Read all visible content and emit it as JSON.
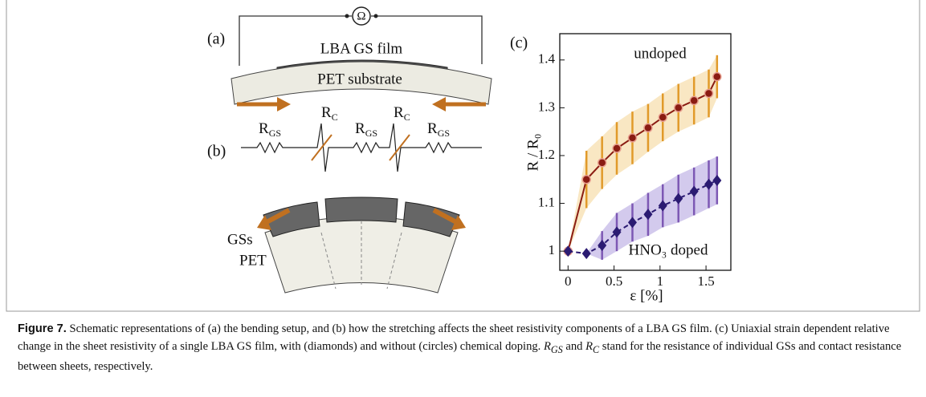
{
  "figure": {
    "schematic": {
      "panel_a": "(a)",
      "ohm": "Ω",
      "film": "LBA GS film",
      "substrate": "PET substrate",
      "panel_b": "(b)",
      "r_gs": {
        "base": "R",
        "sub": "GS"
      },
      "r_c": {
        "base": "R",
        "sub": "C"
      },
      "gss": "GSs",
      "pet": "PET"
    },
    "caption": {
      "label": "Figure 7.",
      "text": " Schematic representations of (a) the bending setup, and (b) how the stretching affects the sheet resistivity components of a LBA GS film. (c) Uniaxial strain dependent relative change in the sheet resistivity of a single LBA GS film, with (diamonds) and without (circles) chemical doping. ",
      "r1": "R",
      "r1_sub": "GS",
      "mid": " and ",
      "r2": "R",
      "r2_sub": "C",
      "end": " stand for the resistance of individual GSs and contact resistance between sheets, respectively."
    }
  },
  "chart_data": {
    "type": "line",
    "panel_label": "(c)",
    "x_label": "ε [%]",
    "y_label": "R / R₀",
    "annotations": [
      "undoped",
      "HNO₃ doped"
    ],
    "xlim": [
      -0.09,
      1.77
    ],
    "xticks": [
      0,
      0.5,
      1,
      1.5
    ],
    "ylim": [
      0.96,
      1.455
    ],
    "yticks": [
      1,
      1.1,
      1.2,
      1.3,
      1.4
    ],
    "grid": false,
    "series": [
      {
        "name": "undoped",
        "marker": "circle",
        "color": "#8a1c12",
        "error_color": "#e19a2a",
        "band_color": "#f8e3b8",
        "dashed": false,
        "x": [
          0,
          0.2,
          0.37,
          0.53,
          0.7,
          0.87,
          1.03,
          1.2,
          1.37,
          1.53,
          1.62
        ],
        "values": [
          1.0,
          1.15,
          1.185,
          1.215,
          1.237,
          1.258,
          1.28,
          1.3,
          1.315,
          1.33,
          1.365
        ],
        "errors": [
          0,
          0.06,
          0.055,
          0.055,
          0.055,
          0.05,
          0.05,
          0.05,
          0.05,
          0.05,
          0.045
        ]
      },
      {
        "name": "HNO₃ doped",
        "marker": "diamond",
        "color": "#2b1b72",
        "error_color": "#7d58b4",
        "band_color": "#cbc1ea",
        "dashed": true,
        "x": [
          0,
          0.2,
          0.37,
          0.53,
          0.7,
          0.87,
          1.03,
          1.2,
          1.37,
          1.53,
          1.62
        ],
        "values": [
          1.0,
          0.995,
          1.012,
          1.04,
          1.06,
          1.077,
          1.095,
          1.11,
          1.125,
          1.14,
          1.148
        ],
        "errors": [
          0,
          0,
          0.03,
          0.04,
          0.04,
          0.045,
          0.045,
          0.05,
          0.05,
          0.05,
          0.05
        ]
      }
    ]
  }
}
